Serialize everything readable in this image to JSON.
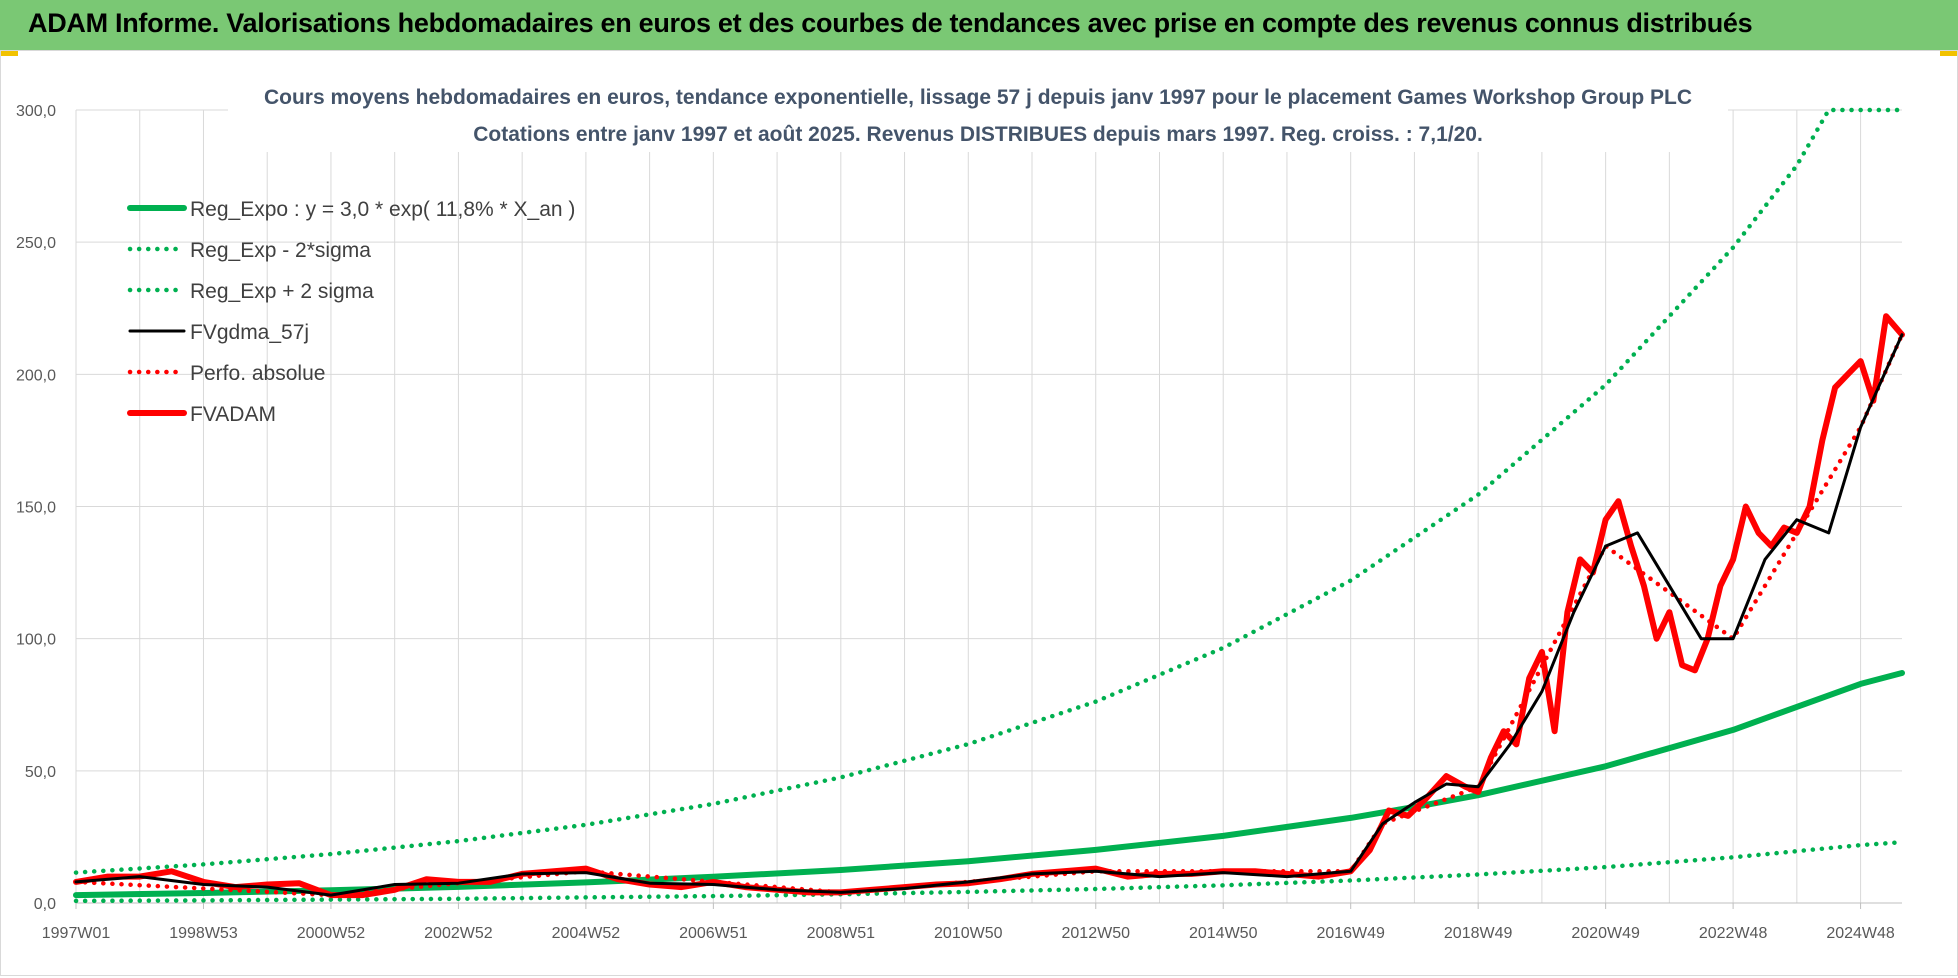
{
  "banner": {
    "title": "ADAM Informe. Valorisations hebdomadaires en euros et des courbes de tendances avec prise en compte des revenus connus distribués"
  },
  "colors": {
    "banner": "#7ac874",
    "regression": "#00b050",
    "fvgdma": "#000000",
    "fvadam": "#ff0000",
    "grid": "#d9d9d9"
  },
  "chart_data": {
    "type": "line",
    "title": "Cours moyens hebdomadaires en euros, tendance exponentielle, lissage 57 j depuis janv 1997 pour le placement Games Workshop Group PLC",
    "subtitle": "Cotations entre janv 1997 et août 2025. Revenus DISTRIBUES depuis mars 1997. Reg. croiss. : 7,1/20.",
    "xlabel": "",
    "ylabel": "",
    "ylim": [
      0,
      300
    ],
    "xlim": [
      1997.0,
      2025.65
    ],
    "grid": true,
    "legend_position": "top-left",
    "y_ticks": [
      "0,0",
      "50,0",
      "100,0",
      "150,0",
      "200,0",
      "250,0",
      "300,0"
    ],
    "x_tick_labels": [
      "1997W01",
      "1998W53",
      "2000W52",
      "2002W52",
      "2004W52",
      "2006W51",
      "2008W51",
      "2010W50",
      "2012W50",
      "2014W50",
      "2016W49",
      "2018W49",
      "2020W49",
      "2022W48",
      "2024W48"
    ],
    "x_tick_years": [
      1997.0,
      1999.0,
      2001.0,
      2003.0,
      2005.0,
      2007.0,
      2009.0,
      2011.0,
      2013.0,
      2015.0,
      2017.0,
      2019.0,
      2021.0,
      2023.0,
      2025.0
    ],
    "series": [
      {
        "name": "Reg_Expo : y = 3,0 * exp( 11,8% *  X_an )",
        "style": "solid-thick",
        "color": "#00b050",
        "x": [
          1997,
          1999,
          2001,
          2003,
          2005,
          2007,
          2009,
          2011,
          2013,
          2015,
          2017,
          2018,
          2019,
          2021,
          2023,
          2025,
          2025.65
        ],
        "values": [
          3.0,
          3.8,
          4.8,
          6.1,
          7.8,
          9.9,
          12.5,
          15.8,
          20.1,
          25.4,
          32.2,
          36.3,
          40.8,
          51.7,
          65.5,
          82.9,
          87.0
        ]
      },
      {
        "name": "Reg_Exp - 2*sigma",
        "style": "dotted",
        "color": "#00b050",
        "x": [
          1997,
          1999,
          2001,
          2003,
          2005,
          2007,
          2009,
          2011,
          2013,
          2015,
          2017,
          2019,
          2021,
          2023,
          2025,
          2025.65
        ],
        "values": [
          0.8,
          1.0,
          1.3,
          1.6,
          2.1,
          2.6,
          3.3,
          4.2,
          5.3,
          6.7,
          8.5,
          10.8,
          13.6,
          17.3,
          21.9,
          23.0
        ]
      },
      {
        "name": "Reg_Exp + 2 sigma",
        "style": "dotted",
        "color": "#00b050",
        "x": [
          1997,
          1999,
          2001,
          2003,
          2005,
          2007,
          2009,
          2011,
          2013,
          2015,
          2017,
          2019,
          2021,
          2023,
          2024,
          2024.5,
          2025,
          2025.65
        ],
        "values": [
          11.5,
          14.6,
          18.5,
          23.4,
          29.6,
          37.5,
          47.5,
          60.1,
          76.2,
          96.5,
          122.0,
          154.5,
          196.0,
          248.0,
          279.0,
          300.0,
          300.0,
          300.0
        ]
      },
      {
        "name": "FVgdma_57j",
        "style": "solid",
        "color": "#000000",
        "x": [
          1997,
          1998,
          1999,
          2000,
          2001,
          2002,
          2003,
          2004,
          2005,
          2006,
          2007,
          2008,
          2009,
          2010,
          2011,
          2012,
          2013,
          2014,
          2015,
          2016,
          2017,
          2017.5,
          2018,
          2018.5,
          2019,
          2019.5,
          2020,
          2020.5,
          2021,
          2021.5,
          2022,
          2022.5,
          2023,
          2023.5,
          2024,
          2024.5,
          2025,
          2025.65
        ],
        "values": [
          8,
          10,
          7,
          6,
          3,
          7,
          7.5,
          11,
          11.5,
          7.5,
          7,
          5,
          4,
          5.5,
          8,
          11,
          12,
          10,
          11.5,
          10,
          12,
          30,
          38,
          45,
          44,
          60,
          80,
          110,
          135,
          140,
          120,
          100,
          100,
          130,
          145,
          140,
          180,
          215
        ]
      },
      {
        "name": "Perfo. absolue",
        "style": "dotted",
        "color": "#ff0000",
        "x": [
          1997,
          2001,
          2005,
          2009,
          2013,
          2017,
          2017.5,
          2019,
          2021,
          2023,
          2025,
          2025.65
        ],
        "values": [
          8,
          3,
          12,
          4,
          12,
          12,
          30,
          44,
          135,
          100,
          180,
          215
        ]
      },
      {
        "name": "FVADAM",
        "style": "solid-thick",
        "color": "#ff0000",
        "x": [
          1997,
          1997.5,
          1998,
          1998.5,
          1999,
          1999.5,
          2000,
          2000.5,
          2001,
          2001.5,
          2002,
          2002.5,
          2003,
          2003.5,
          2004,
          2004.5,
          2005,
          2005.5,
          2006,
          2006.5,
          2007,
          2007.5,
          2008,
          2008.5,
          2009,
          2009.5,
          2010,
          2010.5,
          2011,
          2011.5,
          2012,
          2012.5,
          2013,
          2013.5,
          2014,
          2014.5,
          2015,
          2015.5,
          2016,
          2016.5,
          2017,
          2017.3,
          2017.6,
          2017.9,
          2018.2,
          2018.5,
          2018.8,
          2019,
          2019.2,
          2019.4,
          2019.6,
          2019.8,
          2020,
          2020.2,
          2020.4,
          2020.6,
          2020.8,
          2021,
          2021.2,
          2021.4,
          2021.6,
          2021.8,
          2022,
          2022.2,
          2022.4,
          2022.6,
          2022.8,
          2023,
          2023.2,
          2023.4,
          2023.6,
          2023.8,
          2024,
          2024.2,
          2024.4,
          2024.6,
          2024.8,
          2025,
          2025.2,
          2025.4,
          2025.65
        ],
        "values": [
          8,
          10,
          10,
          12,
          8,
          6,
          7,
          7.5,
          3,
          3,
          5,
          9,
          8,
          8,
          11,
          12,
          13,
          9,
          7,
          6,
          8,
          6,
          5,
          4,
          4,
          5,
          6,
          7,
          7.5,
          9,
          11,
          12,
          13,
          10,
          11,
          11,
          12,
          12,
          11,
          10,
          12,
          20,
          35,
          33,
          40,
          48,
          44,
          42,
          55,
          65,
          60,
          85,
          95,
          65,
          110,
          130,
          125,
          145,
          152,
          135,
          120,
          100,
          110,
          90,
          88,
          100,
          120,
          130,
          150,
          140,
          135,
          142,
          140,
          150,
          175,
          195,
          200,
          205,
          190,
          222,
          215
        ]
      }
    ]
  }
}
